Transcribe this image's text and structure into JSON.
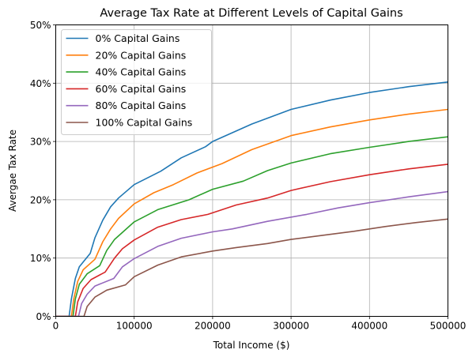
{
  "chart_data": {
    "type": "line",
    "title": "Average Tax Rate at Different Levels of Capital Gains",
    "xlabel": "Total Income ($)",
    "ylabel": "Avergae Tax Rate",
    "xlim": [
      0,
      500000
    ],
    "ylim": [
      0,
      50
    ],
    "xticks": [
      0,
      100000,
      200000,
      300000,
      400000,
      500000
    ],
    "xtick_labels": [
      "0",
      "100000",
      "200000",
      "300000",
      "400000",
      "500000"
    ],
    "yticks": [
      0,
      10,
      20,
      30,
      40,
      50
    ],
    "ytick_labels": [
      "0%",
      "10%",
      "20%",
      "30%",
      "40%",
      "50%"
    ],
    "grid": true,
    "legend_placement": "top-left",
    "series": [
      {
        "name": "0% Capital Gains",
        "color": "#1f77b4",
        "x": [
          0,
          17000,
          20000,
          25000,
          30000,
          44000,
          50000,
          60000,
          70000,
          80000,
          100000,
          134000,
          160000,
          191000,
          200000,
          250000,
          300000,
          350000,
          400000,
          450000,
          500000
        ],
        "y": [
          0,
          0,
          3,
          6.5,
          8.5,
          10.8,
          13.5,
          16.5,
          18.8,
          20.3,
          22.6,
          24.9,
          27.2,
          29.1,
          30,
          33,
          35.5,
          37.1,
          38.4,
          39.4,
          40.2
        ]
      },
      {
        "name": "20% Capital Gains",
        "color": "#ff7f0e",
        "x": [
          0,
          20000,
          23000,
          28000,
          35000,
          50000,
          60000,
          70000,
          80000,
          100000,
          125000,
          150000,
          180000,
          212000,
          250000,
          300000,
          350000,
          400000,
          450000,
          500000
        ],
        "y": [
          0,
          0,
          3,
          6,
          8,
          9.8,
          12.8,
          15,
          16.8,
          19.3,
          21.2,
          22.6,
          24.6,
          26.2,
          28.6,
          31,
          32.5,
          33.7,
          34.7,
          35.5
        ]
      },
      {
        "name": "40% Capital Gains",
        "color": "#2ca02c",
        "x": [
          0,
          22000,
          25000,
          30000,
          40000,
          56000,
          65000,
          75000,
          100000,
          130000,
          170000,
          200000,
          239000,
          270000,
          300000,
          350000,
          400000,
          450000,
          500000
        ],
        "y": [
          0,
          0,
          3,
          5.5,
          7.3,
          8.7,
          11.3,
          13.2,
          16.2,
          18.3,
          20,
          21.8,
          23.2,
          25,
          26.3,
          27.9,
          29,
          30,
          30.8
        ]
      },
      {
        "name": "60% Capital Gains",
        "color": "#d62728",
        "x": [
          0,
          25000,
          28000,
          35000,
          45000,
          63000,
          75000,
          85000,
          100000,
          130000,
          160000,
          194000,
          230000,
          270000,
          300000,
          350000,
          400000,
          450000,
          500000
        ],
        "y": [
          0,
          0,
          2.5,
          4.8,
          6.3,
          7.6,
          10,
          11.6,
          13.1,
          15.3,
          16.6,
          17.5,
          19.1,
          20.3,
          21.6,
          23.1,
          24.3,
          25.3,
          26.1
        ]
      },
      {
        "name": "80% Capital Gains",
        "color": "#9467bd",
        "x": [
          0,
          29000,
          33000,
          40000,
          50000,
          74000,
          85000,
          100000,
          130000,
          160000,
          200000,
          225000,
          270000,
          320000,
          360000,
          400000,
          450000,
          500000
        ],
        "y": [
          0,
          0,
          2.2,
          3.8,
          5.2,
          6.5,
          8.5,
          9.9,
          12,
          13.4,
          14.5,
          15,
          16.3,
          17.5,
          18.6,
          19.5,
          20.5,
          21.4
        ]
      },
      {
        "name": "100% Capital Gains",
        "color": "#8c564b",
        "x": [
          0,
          36000,
          40000,
          50000,
          65000,
          89000,
          100000,
          130000,
          160000,
          200000,
          230000,
          270000,
          300000,
          340000,
          380000,
          420000,
          460000,
          500000
        ],
        "y": [
          0,
          0,
          1.7,
          3.3,
          4.5,
          5.4,
          6.8,
          8.8,
          10.2,
          11.2,
          11.8,
          12.5,
          13.2,
          13.9,
          14.6,
          15.4,
          16.1,
          16.7
        ]
      }
    ]
  }
}
